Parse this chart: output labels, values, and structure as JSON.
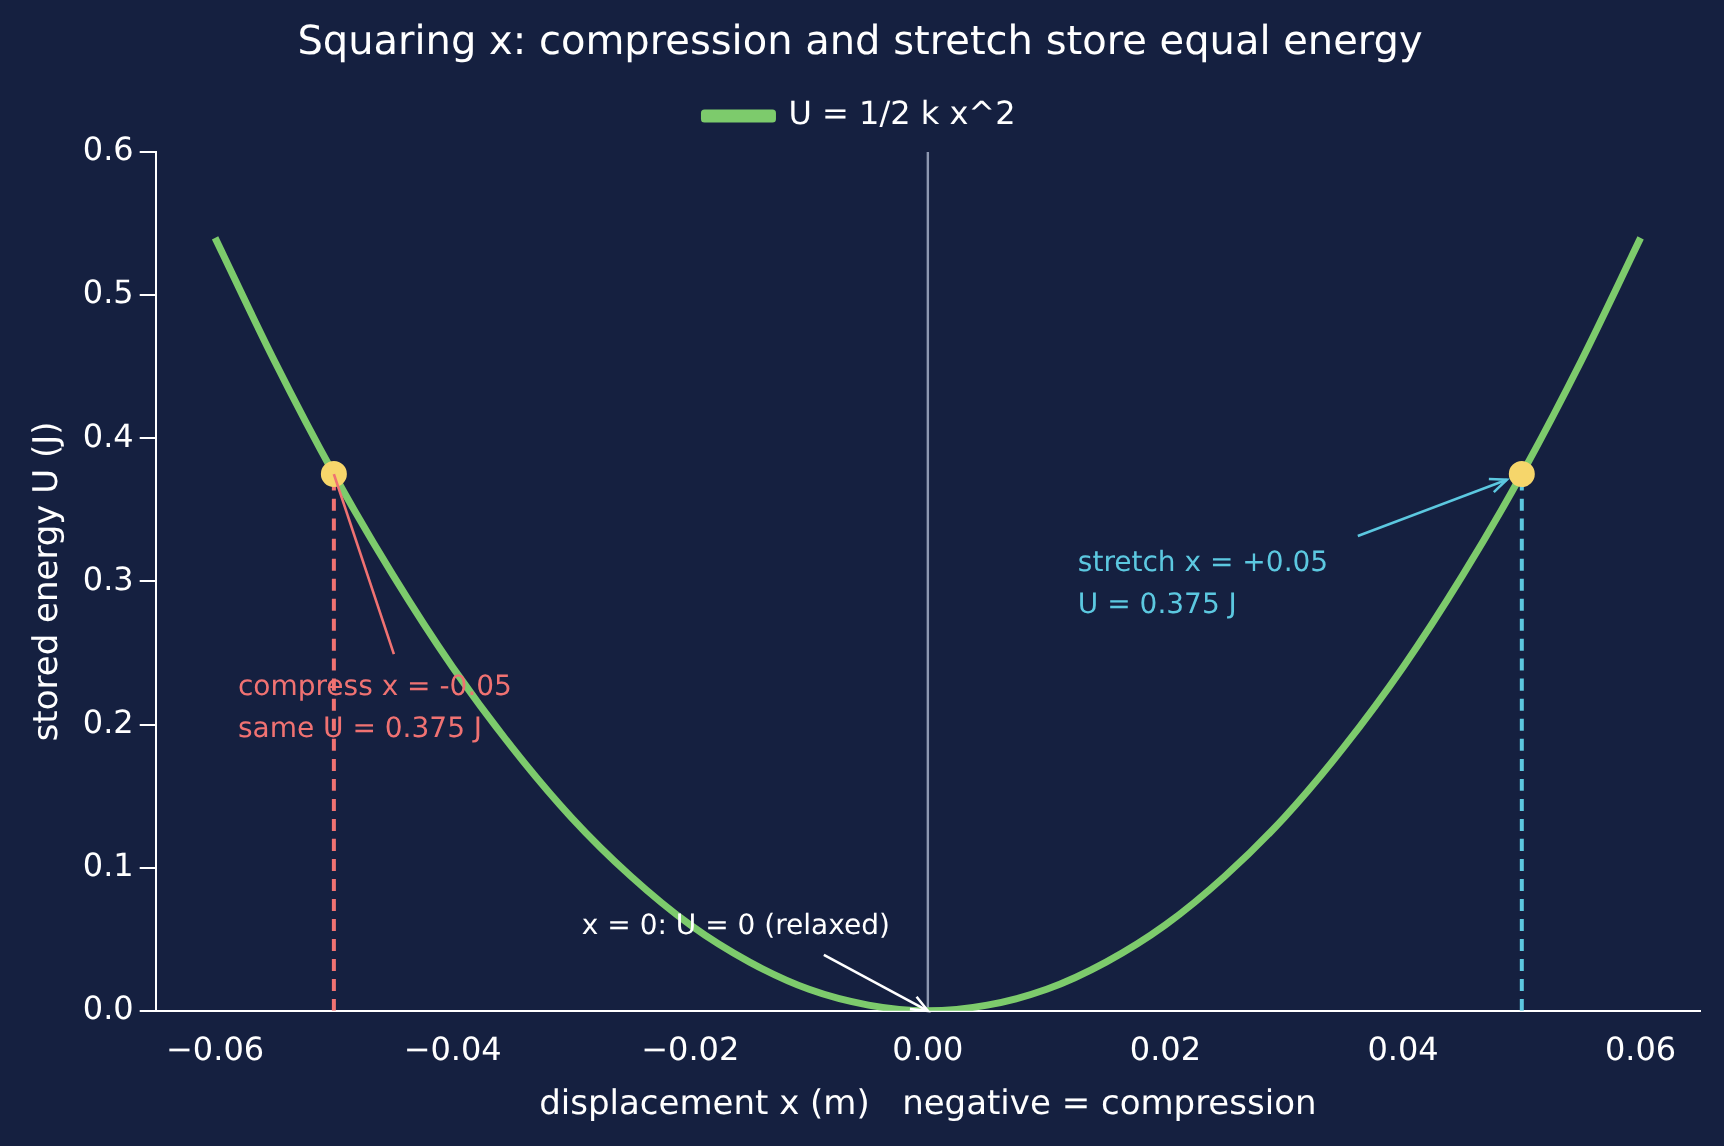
{
  "chart_data": {
    "type": "line",
    "title": "Squaring x: compression and stretch store equal energy",
    "xlabel": "displacement x (m)   negative = compression",
    "ylabel": "stored energy U (J)",
    "xlim": [
      -0.065,
      0.065
    ],
    "ylim": [
      0,
      0.6
    ],
    "xticks": [
      {
        "value": -0.06,
        "label": "−0.06"
      },
      {
        "value": -0.04,
        "label": "−0.04"
      },
      {
        "value": -0.02,
        "label": "−0.02"
      },
      {
        "value": 0,
        "label": "0.00"
      },
      {
        "value": 0.02,
        "label": "0.02"
      },
      {
        "value": 0.04,
        "label": "0.04"
      },
      {
        "value": 0.06,
        "label": "0.06"
      }
    ],
    "yticks": [
      {
        "value": 0,
        "label": "0.0"
      },
      0.1,
      0.2,
      0.3,
      0.4,
      0.5,
      0.6
    ],
    "grid": false,
    "legend": "top",
    "series": [
      {
        "name": "U = 1/2 k x^2",
        "type": "line",
        "color": "#7dcb6c",
        "marker": "none",
        "line_style": "solid",
        "x": [
          -0.06,
          -0.055,
          -0.05,
          -0.045,
          -0.04,
          -0.035,
          -0.03,
          -0.025,
          -0.02,
          -0.015,
          -0.01,
          -0.005,
          0,
          0.005,
          0.01,
          0.015,
          0.02,
          0.025,
          0.03,
          0.035,
          0.04,
          0.045,
          0.05,
          0.055,
          0.06
        ],
        "values": [
          0.54,
          0.454,
          0.375,
          0.304,
          0.24,
          0.184,
          0.135,
          0.094,
          0.06,
          0.034,
          0.015,
          0.004,
          0,
          0.004,
          0.015,
          0.034,
          0.06,
          0.094,
          0.135,
          0.184,
          0.24,
          0.304,
          0.375,
          0.454,
          0.54
        ]
      },
      {
        "color": "#f07272",
        "marker": "none",
        "line_style": "dashed",
        "x": [
          -0.05,
          -0.05
        ],
        "values": [
          0,
          0.375
        ]
      },
      {
        "type": "line",
        "color": "#5cc8e0",
        "marker": "none",
        "line_style": "dashed",
        "x": [
          0.05,
          0.05
        ],
        "values": [
          0,
          0.375
        ]
      },
      {
        "type": "scatter",
        "color": "#f6d66b",
        "marker": "circle",
        "x": [
          -0.05,
          0.05
        ],
        "values": [
          0.375,
          0.375
        ]
      }
    ],
    "ref_lines": [
      {
        "axis": "x",
        "value": 0,
        "color": "#8d97b0"
      }
    ],
    "annotations": [
      {
        "text": "compress x = -0.05\nsame U = 0.375 J",
        "x": -0.05,
        "y": 0.375
      },
      {
        "text": "stretch x = +0.05\nU = 0.375 J",
        "x": 0.05,
        "y": 0.375
      },
      {
        "text": "x = 0: U = 0 (relaxed)",
        "x": 0,
        "y": 0
      }
    ]
  }
}
